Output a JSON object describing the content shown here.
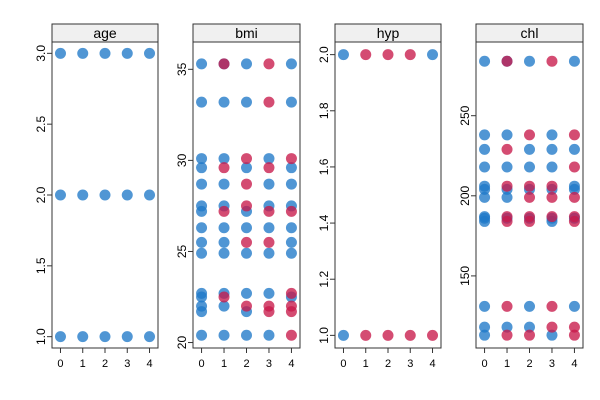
{
  "chart_data": [
    {
      "type": "scatter",
      "title": "age",
      "x_ticks": [
        "0",
        "1",
        "2",
        "3",
        "4"
      ],
      "ylim": [
        0.92,
        3.08
      ],
      "y_ticks": [
        1.0,
        1.5,
        2.0,
        2.5,
        3.0
      ],
      "y_tick_labels": [
        "1.0",
        "1.5",
        "2.0",
        "2.5",
        "3.0"
      ],
      "observed_color": "#1f78c8",
      "imputed_color": "#c8194a",
      "points": [
        {
          "x": 0,
          "y": 1,
          "imp": false
        },
        {
          "x": 0,
          "y": 2,
          "imp": false
        },
        {
          "x": 0,
          "y": 3,
          "imp": false
        },
        {
          "x": 1,
          "y": 1,
          "imp": false
        },
        {
          "x": 1,
          "y": 2,
          "imp": false
        },
        {
          "x": 1,
          "y": 3,
          "imp": false
        },
        {
          "x": 2,
          "y": 1,
          "imp": false
        },
        {
          "x": 2,
          "y": 2,
          "imp": false
        },
        {
          "x": 2,
          "y": 3,
          "imp": false
        },
        {
          "x": 3,
          "y": 1,
          "imp": false
        },
        {
          "x": 3,
          "y": 2,
          "imp": false
        },
        {
          "x": 3,
          "y": 3,
          "imp": false
        },
        {
          "x": 4,
          "y": 1,
          "imp": false
        },
        {
          "x": 4,
          "y": 2,
          "imp": false
        },
        {
          "x": 4,
          "y": 3,
          "imp": false
        }
      ]
    },
    {
      "type": "scatter",
      "title": "bmi",
      "x_ticks": [
        "0",
        "1",
        "2",
        "3",
        "4"
      ],
      "ylim": [
        19.7,
        36.5
      ],
      "y_ticks": [
        20,
        25,
        30,
        35
      ],
      "y_tick_labels": [
        "20",
        "25",
        "30",
        "35"
      ],
      "observed_color": "#1f78c8",
      "imputed_color": "#c8194a",
      "points": [
        {
          "x": 0,
          "y": 35.3,
          "imp": false
        },
        {
          "x": 0,
          "y": 33.2,
          "imp": false
        },
        {
          "x": 0,
          "y": 30.1,
          "imp": false
        },
        {
          "x": 0,
          "y": 29.6,
          "imp": false
        },
        {
          "x": 0,
          "y": 28.7,
          "imp": false
        },
        {
          "x": 0,
          "y": 27.5,
          "imp": false
        },
        {
          "x": 0,
          "y": 27.2,
          "imp": false
        },
        {
          "x": 0,
          "y": 26.3,
          "imp": false
        },
        {
          "x": 0,
          "y": 25.5,
          "imp": false
        },
        {
          "x": 0,
          "y": 24.9,
          "imp": false
        },
        {
          "x": 0,
          "y": 22.7,
          "imp": false
        },
        {
          "x": 0,
          "y": 22.5,
          "imp": false
        },
        {
          "x": 0,
          "y": 22.0,
          "imp": false
        },
        {
          "x": 0,
          "y": 21.7,
          "imp": false
        },
        {
          "x": 0,
          "y": 20.4,
          "imp": false
        },
        {
          "x": 1,
          "y": 35.3,
          "imp": false
        },
        {
          "x": 1,
          "y": 35.3,
          "imp": true
        },
        {
          "x": 1,
          "y": 33.2,
          "imp": false
        },
        {
          "x": 1,
          "y": 30.1,
          "imp": false
        },
        {
          "x": 1,
          "y": 29.6,
          "imp": true
        },
        {
          "x": 1,
          "y": 28.7,
          "imp": false
        },
        {
          "x": 1,
          "y": 27.5,
          "imp": false
        },
        {
          "x": 1,
          "y": 27.2,
          "imp": true
        },
        {
          "x": 1,
          "y": 26.3,
          "imp": false
        },
        {
          "x": 1,
          "y": 25.5,
          "imp": false
        },
        {
          "x": 1,
          "y": 24.9,
          "imp": false
        },
        {
          "x": 1,
          "y": 22.7,
          "imp": false
        },
        {
          "x": 1,
          "y": 22.5,
          "imp": true
        },
        {
          "x": 1,
          "y": 22.0,
          "imp": false
        },
        {
          "x": 1,
          "y": 20.4,
          "imp": false
        },
        {
          "x": 2,
          "y": 35.3,
          "imp": false
        },
        {
          "x": 2,
          "y": 33.2,
          "imp": false
        },
        {
          "x": 2,
          "y": 30.1,
          "imp": true
        },
        {
          "x": 2,
          "y": 29.6,
          "imp": false
        },
        {
          "x": 2,
          "y": 28.7,
          "imp": true
        },
        {
          "x": 2,
          "y": 27.5,
          "imp": true
        },
        {
          "x": 2,
          "y": 27.2,
          "imp": false
        },
        {
          "x": 2,
          "y": 26.3,
          "imp": false
        },
        {
          "x": 2,
          "y": 25.5,
          "imp": true
        },
        {
          "x": 2,
          "y": 24.9,
          "imp": false
        },
        {
          "x": 2,
          "y": 22.7,
          "imp": false
        },
        {
          "x": 2,
          "y": 22.0,
          "imp": true
        },
        {
          "x": 2,
          "y": 21.7,
          "imp": false
        },
        {
          "x": 2,
          "y": 20.4,
          "imp": false
        },
        {
          "x": 3,
          "y": 35.3,
          "imp": true
        },
        {
          "x": 3,
          "y": 33.2,
          "imp": true
        },
        {
          "x": 3,
          "y": 30.1,
          "imp": false
        },
        {
          "x": 3,
          "y": 29.6,
          "imp": true
        },
        {
          "x": 3,
          "y": 28.7,
          "imp": false
        },
        {
          "x": 3,
          "y": 27.5,
          "imp": false
        },
        {
          "x": 3,
          "y": 27.2,
          "imp": true
        },
        {
          "x": 3,
          "y": 26.3,
          "imp": false
        },
        {
          "x": 3,
          "y": 25.5,
          "imp": true
        },
        {
          "x": 3,
          "y": 24.9,
          "imp": false
        },
        {
          "x": 3,
          "y": 22.7,
          "imp": false
        },
        {
          "x": 3,
          "y": 22.0,
          "imp": true
        },
        {
          "x": 3,
          "y": 21.7,
          "imp": true
        },
        {
          "x": 3,
          "y": 20.4,
          "imp": false
        },
        {
          "x": 4,
          "y": 35.3,
          "imp": false
        },
        {
          "x": 4,
          "y": 33.2,
          "imp": false
        },
        {
          "x": 4,
          "y": 30.1,
          "imp": true
        },
        {
          "x": 4,
          "y": 29.6,
          "imp": false
        },
        {
          "x": 4,
          "y": 28.7,
          "imp": false
        },
        {
          "x": 4,
          "y": 27.5,
          "imp": false
        },
        {
          "x": 4,
          "y": 27.2,
          "imp": true
        },
        {
          "x": 4,
          "y": 26.3,
          "imp": false
        },
        {
          "x": 4,
          "y": 25.5,
          "imp": false
        },
        {
          "x": 4,
          "y": 24.9,
          "imp": false
        },
        {
          "x": 4,
          "y": 22.7,
          "imp": true
        },
        {
          "x": 4,
          "y": 22.5,
          "imp": false
        },
        {
          "x": 4,
          "y": 22.0,
          "imp": true
        },
        {
          "x": 4,
          "y": 21.7,
          "imp": true
        },
        {
          "x": 4,
          "y": 20.4,
          "imp": true
        }
      ]
    },
    {
      "type": "scatter",
      "title": "hyp",
      "x_ticks": [
        "0",
        "1",
        "2",
        "3",
        "4"
      ],
      "ylim": [
        0.955,
        2.045
      ],
      "y_ticks": [
        1.0,
        1.2,
        1.4,
        1.6,
        1.8,
        2.0
      ],
      "y_tick_labels": [
        "1.0",
        "1.2",
        "1.4",
        "1.6",
        "1.8",
        "2.0"
      ],
      "observed_color": "#1f78c8",
      "imputed_color": "#c8194a",
      "points": [
        {
          "x": 0,
          "y": 1,
          "imp": false
        },
        {
          "x": 0,
          "y": 2,
          "imp": false
        },
        {
          "x": 1,
          "y": 1,
          "imp": true
        },
        {
          "x": 1,
          "y": 2,
          "imp": true
        },
        {
          "x": 2,
          "y": 1,
          "imp": true
        },
        {
          "x": 2,
          "y": 2,
          "imp": true
        },
        {
          "x": 3,
          "y": 1,
          "imp": true
        },
        {
          "x": 3,
          "y": 2,
          "imp": true
        },
        {
          "x": 4,
          "y": 1,
          "imp": true
        },
        {
          "x": 4,
          "y": 2,
          "imp": false
        }
      ]
    },
    {
      "type": "scatter",
      "title": "chl",
      "x_ticks": [
        "0",
        "1",
        "2",
        "3",
        "4"
      ],
      "ylim": [
        105,
        296
      ],
      "y_ticks": [
        150,
        200,
        250
      ],
      "y_tick_labels": [
        "150",
        "200",
        "250"
      ],
      "observed_color": "#1f78c8",
      "imputed_color": "#c8194a",
      "points": [
        {
          "x": 0,
          "y": 284,
          "imp": false
        },
        {
          "x": 0,
          "y": 238,
          "imp": false
        },
        {
          "x": 0,
          "y": 229,
          "imp": false
        },
        {
          "x": 0,
          "y": 218,
          "imp": false
        },
        {
          "x": 0,
          "y": 206,
          "imp": false
        },
        {
          "x": 0,
          "y": 204,
          "imp": false
        },
        {
          "x": 0,
          "y": 199,
          "imp": false
        },
        {
          "x": 0,
          "y": 187,
          "imp": false
        },
        {
          "x": 0,
          "y": 186,
          "imp": false
        },
        {
          "x": 0,
          "y": 184,
          "imp": false
        },
        {
          "x": 0,
          "y": 131,
          "imp": false
        },
        {
          "x": 0,
          "y": 118,
          "imp": false
        },
        {
          "x": 0,
          "y": 113,
          "imp": false
        },
        {
          "x": 1,
          "y": 284,
          "imp": false
        },
        {
          "x": 1,
          "y": 284,
          "imp": true
        },
        {
          "x": 1,
          "y": 238,
          "imp": false
        },
        {
          "x": 1,
          "y": 229,
          "imp": true
        },
        {
          "x": 1,
          "y": 218,
          "imp": false
        },
        {
          "x": 1,
          "y": 206,
          "imp": true
        },
        {
          "x": 1,
          "y": 204,
          "imp": false
        },
        {
          "x": 1,
          "y": 199,
          "imp": false
        },
        {
          "x": 1,
          "y": 187,
          "imp": true
        },
        {
          "x": 1,
          "y": 186,
          "imp": false
        },
        {
          "x": 1,
          "y": 184,
          "imp": true
        },
        {
          "x": 1,
          "y": 131,
          "imp": true
        },
        {
          "x": 1,
          "y": 118,
          "imp": false
        },
        {
          "x": 1,
          "y": 113,
          "imp": true
        },
        {
          "x": 2,
          "y": 284,
          "imp": false
        },
        {
          "x": 2,
          "y": 238,
          "imp": true
        },
        {
          "x": 2,
          "y": 229,
          "imp": false
        },
        {
          "x": 2,
          "y": 218,
          "imp": false
        },
        {
          "x": 2,
          "y": 206,
          "imp": true
        },
        {
          "x": 2,
          "y": 204,
          "imp": false
        },
        {
          "x": 2,
          "y": 199,
          "imp": true
        },
        {
          "x": 2,
          "y": 187,
          "imp": true
        },
        {
          "x": 2,
          "y": 186,
          "imp": false
        },
        {
          "x": 2,
          "y": 184,
          "imp": true
        },
        {
          "x": 2,
          "y": 131,
          "imp": false
        },
        {
          "x": 2,
          "y": 118,
          "imp": false
        },
        {
          "x": 2,
          "y": 113,
          "imp": true
        },
        {
          "x": 3,
          "y": 284,
          "imp": true
        },
        {
          "x": 3,
          "y": 238,
          "imp": false
        },
        {
          "x": 3,
          "y": 229,
          "imp": false
        },
        {
          "x": 3,
          "y": 218,
          "imp": false
        },
        {
          "x": 3,
          "y": 206,
          "imp": true
        },
        {
          "x": 3,
          "y": 204,
          "imp": false
        },
        {
          "x": 3,
          "y": 199,
          "imp": true
        },
        {
          "x": 3,
          "y": 187,
          "imp": true
        },
        {
          "x": 3,
          "y": 186,
          "imp": false
        },
        {
          "x": 3,
          "y": 184,
          "imp": false
        },
        {
          "x": 3,
          "y": 131,
          "imp": true
        },
        {
          "x": 3,
          "y": 118,
          "imp": true
        },
        {
          "x": 3,
          "y": 113,
          "imp": false
        },
        {
          "x": 4,
          "y": 284,
          "imp": false
        },
        {
          "x": 4,
          "y": 238,
          "imp": true
        },
        {
          "x": 4,
          "y": 229,
          "imp": false
        },
        {
          "x": 4,
          "y": 218,
          "imp": true
        },
        {
          "x": 4,
          "y": 206,
          "imp": false
        },
        {
          "x": 4,
          "y": 204,
          "imp": false
        },
        {
          "x": 4,
          "y": 199,
          "imp": true
        },
        {
          "x": 4,
          "y": 187,
          "imp": true
        },
        {
          "x": 4,
          "y": 186,
          "imp": false
        },
        {
          "x": 4,
          "y": 184,
          "imp": true
        },
        {
          "x": 4,
          "y": 131,
          "imp": false
        },
        {
          "x": 4,
          "y": 118,
          "imp": true
        },
        {
          "x": 4,
          "y": 113,
          "imp": true
        }
      ]
    }
  ]
}
